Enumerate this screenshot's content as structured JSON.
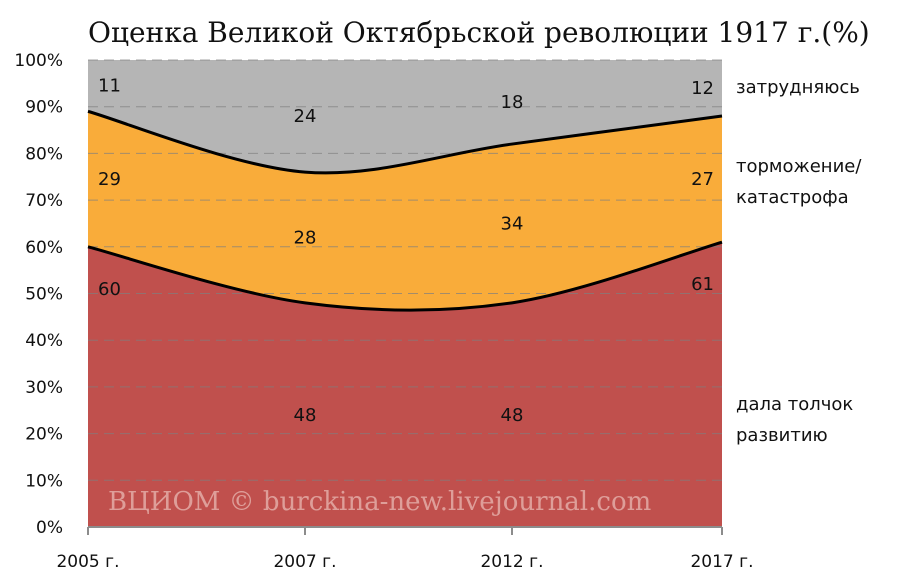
{
  "chart_data": {
    "type": "area",
    "title": "Оценка Великой Октябрьской революции 1917 г.(%)",
    "categories": [
      "2005 г.",
      "2007 г.",
      "2012 г.",
      "2017 г."
    ],
    "ylim": [
      0,
      100
    ],
    "y_ticks": [
      "0%",
      "10%",
      "20%",
      "30%",
      "40%",
      "50%",
      "60%",
      "70%",
      "80%",
      "90%",
      "100%"
    ],
    "stacked": true,
    "smoothed": true,
    "grid": "horizontal-dashed",
    "series": [
      {
        "name": "дала толчок развитию",
        "legend_lines": [
          "дала толчок",
          "развитию"
        ],
        "values": [
          60,
          48,
          48,
          61
        ],
        "color": "#c0504d"
      },
      {
        "name": "торможение/ катастрофа",
        "legend_lines": [
          "торможение/",
          "катастрофа"
        ],
        "values": [
          29,
          28,
          34,
          27
        ],
        "color": "#f9ac3a"
      },
      {
        "name": "затрудняюсь",
        "legend_lines": [
          "затрудняюсь"
        ],
        "values": [
          11,
          24,
          18,
          12
        ],
        "color": "#b5b5b5"
      }
    ],
    "watermark": "ВЦИОМ © burckina-new.livejournal.com"
  }
}
